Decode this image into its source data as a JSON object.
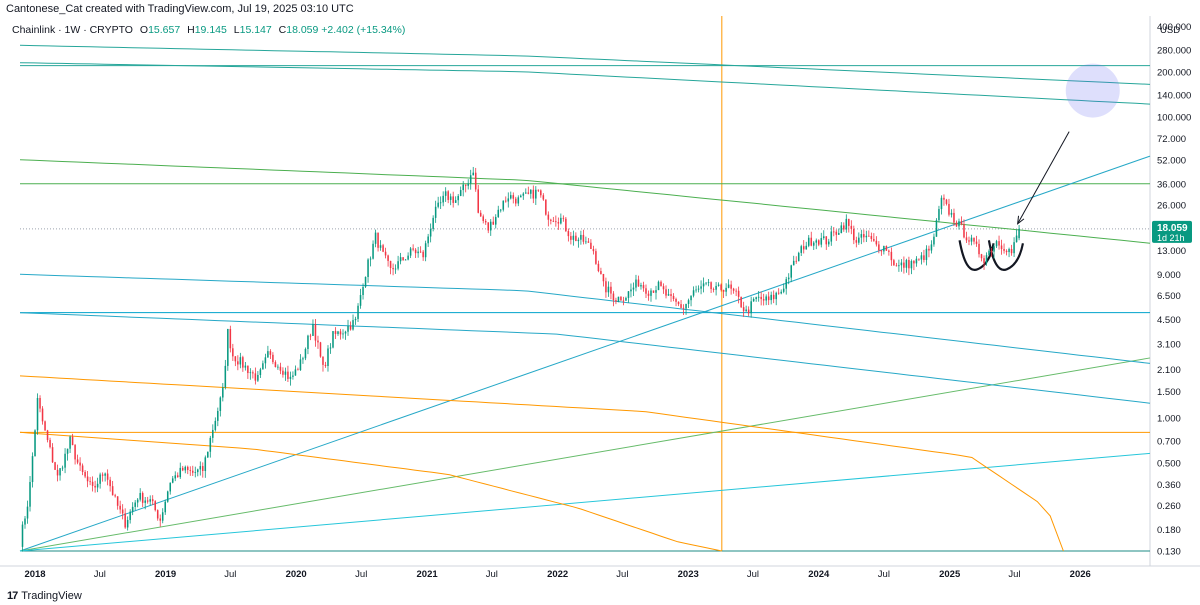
{
  "credit": "Cantonese_Cat created with TradingView.com, Jul 19, 2025 03:10 UTC",
  "legend": {
    "symbol": "Chainlink · 1W · CRYPTO",
    "o_label": "O",
    "o": "15.657",
    "h_label": "H",
    "h": "19.145",
    "l_label": "L",
    "l": "15.147",
    "c_label": "C",
    "c": "18.059",
    "change": "+2.402 (+15.34%)"
  },
  "footer": {
    "brand": "TradingView",
    "logo": "17"
  },
  "price_tag": {
    "price": "18.059",
    "countdown": "1d 21h",
    "color": "#089981"
  },
  "chart_data": {
    "type": "candlestick",
    "currency": "USD",
    "y_scale": "log",
    "y_range": [
      0.13,
      470
    ],
    "x_range": [
      "2017-11-20",
      "2026-07-15"
    ],
    "y_ticks": [
      "400.000",
      "280.000",
      "200.000",
      "140.000",
      "100.000",
      "72.000",
      "52.000",
      "36.000",
      "26.000",
      "13.000",
      "9.000",
      "6.500",
      "4.500",
      "3.100",
      "2.100",
      "1.500",
      "1.000",
      "0.700",
      "0.500",
      "0.360",
      "0.260",
      "0.180",
      "0.130"
    ],
    "x_ticks": [
      {
        "label": "2018",
        "date": "2018-01-01",
        "bold": true
      },
      {
        "label": "Jul",
        "date": "2018-07-01",
        "bold": false
      },
      {
        "label": "2019",
        "date": "2019-01-01",
        "bold": true
      },
      {
        "label": "Jul",
        "date": "2019-07-01",
        "bold": false
      },
      {
        "label": "2020",
        "date": "2020-01-01",
        "bold": true
      },
      {
        "label": "Jul",
        "date": "2020-07-01",
        "bold": false
      },
      {
        "label": "2021",
        "date": "2021-01-01",
        "bold": true
      },
      {
        "label": "Jul",
        "date": "2021-07-01",
        "bold": false
      },
      {
        "label": "2022",
        "date": "2022-01-01",
        "bold": true
      },
      {
        "label": "Jul",
        "date": "2022-07-01",
        "bold": false
      },
      {
        "label": "2023",
        "date": "2023-01-01",
        "bold": true
      },
      {
        "label": "Jul",
        "date": "2023-07-01",
        "bold": false
      },
      {
        "label": "2024",
        "date": "2024-01-01",
        "bold": true
      },
      {
        "label": "Jul",
        "date": "2024-07-01",
        "bold": false
      },
      {
        "label": "2025",
        "date": "2025-01-01",
        "bold": true
      },
      {
        "label": "Jul",
        "date": "2025-07-01",
        "bold": false
      },
      {
        "label": "2026",
        "date": "2026-01-01",
        "bold": true
      }
    ],
    "price_path": [
      [
        "2017-11-20",
        0.15
      ],
      [
        "2017-12-15",
        0.3
      ],
      [
        "2018-01-08",
        1.3
      ],
      [
        "2018-01-29",
        0.8
      ],
      [
        "2018-03-05",
        0.4
      ],
      [
        "2018-04-09",
        0.7
      ],
      [
        "2018-05-07",
        0.45
      ],
      [
        "2018-06-11",
        0.33
      ],
      [
        "2018-07-16",
        0.45
      ],
      [
        "2018-08-13",
        0.28
      ],
      [
        "2018-09-10",
        0.2
      ],
      [
        "2018-10-15",
        0.3
      ],
      [
        "2018-11-19",
        0.28
      ],
      [
        "2018-12-17",
        0.21
      ],
      [
        "2019-01-14",
        0.38
      ],
      [
        "2019-02-18",
        0.45
      ],
      [
        "2019-03-18",
        0.43
      ],
      [
        "2019-04-15",
        0.45
      ],
      [
        "2019-05-13",
        0.85
      ],
      [
        "2019-06-10",
        1.5
      ],
      [
        "2019-06-24",
        3.7
      ],
      [
        "2019-07-08",
        2.6
      ],
      [
        "2019-08-19",
        2.1
      ],
      [
        "2019-09-16",
        1.8
      ],
      [
        "2019-10-14",
        2.6
      ],
      [
        "2019-11-18",
        2.2
      ],
      [
        "2019-12-16",
        1.8
      ],
      [
        "2020-01-13",
        2.3
      ],
      [
        "2020-02-17",
        4.2
      ],
      [
        "2020-03-16",
        2.1
      ],
      [
        "2020-04-13",
        3.5
      ],
      [
        "2020-05-11",
        3.8
      ],
      [
        "2020-06-15",
        4.4
      ],
      [
        "2020-07-06",
        8.0
      ],
      [
        "2020-08-10",
        16.0
      ],
      [
        "2020-08-31",
        12.0
      ],
      [
        "2020-09-21",
        9.5
      ],
      [
        "2020-10-19",
        11.0
      ],
      [
        "2020-11-23",
        13.0
      ],
      [
        "2020-12-21",
        12.0
      ],
      [
        "2021-01-18",
        22.0
      ],
      [
        "2021-02-22",
        30.0
      ],
      [
        "2021-03-22",
        28.0
      ],
      [
        "2021-04-19",
        35.0
      ],
      [
        "2021-05-10",
        45.0
      ],
      [
        "2021-05-24",
        23.0
      ],
      [
        "2021-06-21",
        18.0
      ],
      [
        "2021-07-19",
        24.0
      ],
      [
        "2021-08-16",
        30.0
      ],
      [
        "2021-09-13",
        28.0
      ],
      [
        "2021-10-11",
        30.0
      ],
      [
        "2021-11-08",
        32.0
      ],
      [
        "2021-12-06",
        22.0
      ],
      [
        "2022-01-10",
        21.0
      ],
      [
        "2022-02-07",
        16.0
      ],
      [
        "2022-03-14",
        15.0
      ],
      [
        "2022-04-11",
        13.0
      ],
      [
        "2022-05-09",
        7.5
      ],
      [
        "2022-06-13",
        6.2
      ],
      [
        "2022-07-11",
        6.5
      ],
      [
        "2022-08-15",
        8.0
      ],
      [
        "2022-09-12",
        7.0
      ],
      [
        "2022-10-10",
        7.5
      ],
      [
        "2022-11-14",
        6.0
      ],
      [
        "2022-12-19",
        5.4
      ],
      [
        "2023-01-16",
        6.8
      ],
      [
        "2023-02-20",
        7.5
      ],
      [
        "2023-03-20",
        7.0
      ],
      [
        "2023-04-17",
        7.5
      ],
      [
        "2023-05-15",
        6.5
      ],
      [
        "2023-06-12",
        5.0
      ],
      [
        "2023-07-10",
        6.2
      ],
      [
        "2023-08-14",
        6.0
      ],
      [
        "2023-09-18",
        7.0
      ],
      [
        "2023-10-23",
        10.5
      ],
      [
        "2023-11-20",
        14.0
      ],
      [
        "2023-12-18",
        15.5
      ],
      [
        "2024-01-22",
        15.0
      ],
      [
        "2024-02-26",
        18.0
      ],
      [
        "2024-03-18",
        20.0
      ],
      [
        "2024-04-15",
        15.0
      ],
      [
        "2024-05-13",
        16.0
      ],
      [
        "2024-06-10",
        14.0
      ],
      [
        "2024-07-08",
        13.5
      ],
      [
        "2024-08-05",
        10.0
      ],
      [
        "2024-09-02",
        10.5
      ],
      [
        "2024-10-07",
        11.0
      ],
      [
        "2024-11-11",
        13.5
      ],
      [
        "2024-12-09",
        28.0
      ],
      [
        "2025-01-13",
        21.0
      ],
      [
        "2025-02-10",
        17.0
      ],
      [
        "2025-03-10",
        14.0
      ],
      [
        "2025-04-07",
        11.5
      ],
      [
        "2025-05-12",
        15.0
      ],
      [
        "2025-06-09",
        13.5
      ],
      [
        "2025-06-23",
        12.5
      ],
      [
        "2025-07-07",
        15.7
      ],
      [
        "2025-07-14",
        18.06
      ]
    ],
    "current_price": 18.059,
    "last_candle": {
      "open": 15.657,
      "high": 19.145,
      "low": 15.147,
      "close": 18.059
    },
    "up_color": "#089981",
    "down_color": "#f23645",
    "drawings": [
      {
        "kind": "vertical",
        "date": "2023-04-05",
        "color": "#ff9800"
      },
      {
        "kind": "hline",
        "price": 0.8,
        "color": "#ff9800"
      },
      {
        "kind": "hline",
        "price": 0.13,
        "color": "#1e8b84"
      },
      {
        "kind": "hline",
        "price": 5.0,
        "color": "#00a3cc"
      },
      {
        "kind": "hline",
        "price": 36.0,
        "color": "#4caf50"
      },
      {
        "kind": "hline",
        "price": 220.0,
        "color": "#26a69a"
      },
      {
        "kind": "hline",
        "price": 18.059,
        "color": "#089981",
        "dotted": true
      },
      {
        "kind": "line",
        "p1": [
          "2017-11-20",
          0.13
        ],
        "p2": [
          "2026-07-15",
          55.0
        ],
        "color": "#26a8c7"
      },
      {
        "kind": "line",
        "p1": [
          "2017-11-20",
          0.13
        ],
        "p2": [
          "2026-07-15",
          2.5
        ],
        "color": "#66bb6a"
      },
      {
        "kind": "line",
        "p1": [
          "2017-11-20",
          0.13
        ],
        "p2": [
          "2026-07-15",
          0.58
        ],
        "color": "#26c6da"
      },
      {
        "kind": "curve",
        "points": [
          [
            "2017-11-20",
            52.0
          ],
          [
            "2021-10-01",
            38.0
          ],
          [
            "2026-07-15",
            14.5
          ]
        ],
        "color": "#4caf50"
      },
      {
        "kind": "curve",
        "points": [
          [
            "2017-11-20",
            300.0
          ],
          [
            "2021-10-01",
            255.0
          ],
          [
            "2026-07-15",
            165.0
          ]
        ],
        "color": "#26a69a"
      },
      {
        "kind": "curve",
        "points": [
          [
            "2017-11-20",
            230.0
          ],
          [
            "2021-10-01",
            200.0
          ],
          [
            "2026-07-15",
            122.0
          ]
        ],
        "color": "#26a69a"
      },
      {
        "kind": "curve",
        "points": [
          [
            "2017-11-20",
            9.0
          ],
          [
            "2021-10-01",
            7.0
          ],
          [
            "2026-07-15",
            2.3
          ]
        ],
        "color": "#26a8c7"
      },
      {
        "kind": "curve",
        "points": [
          [
            "2017-11-20",
            5.0
          ],
          [
            "2022-01-01",
            3.6
          ],
          [
            "2026-07-15",
            1.25
          ]
        ],
        "color": "#26a8c7"
      },
      {
        "kind": "curve",
        "points": [
          [
            "2017-11-20",
            1.9
          ],
          [
            "2022-09-01",
            1.1
          ],
          [
            "2025-03-01",
            0.55
          ],
          [
            "2025-10-01",
            0.25
          ],
          [
            "2025-11-15",
            0.13
          ]
        ],
        "color": "#ff9800"
      },
      {
        "kind": "curve",
        "points": [
          [
            "2017-11-20",
            0.8
          ],
          [
            "2019-09-01",
            0.62
          ],
          [
            "2021-03-01",
            0.42
          ],
          [
            "2022-03-01",
            0.25
          ],
          [
            "2022-12-01",
            0.15
          ],
          [
            "2023-04-05",
            0.13
          ]
        ],
        "color": "#ff9800"
      },
      {
        "kind": "circle",
        "center": [
          "2026-02-05",
          150.0
        ],
        "color": "#6b6cf0"
      },
      {
        "kind": "arrow",
        "from": [
          "2025-12-01",
          80.0
        ],
        "to": [
          "2025-07-10",
          19.5
        ],
        "color": "#131722"
      },
      {
        "kind": "cup",
        "center": [
          "2025-03-20",
          11.5
        ],
        "color": "#131722"
      },
      {
        "kind": "cup",
        "center": [
          "2025-06-10",
          11.5
        ],
        "color": "#131722"
      }
    ]
  }
}
